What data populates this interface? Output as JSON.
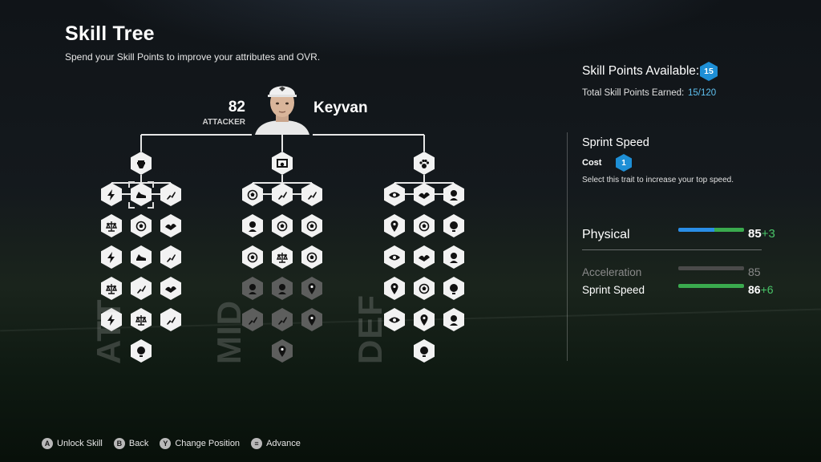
{
  "header": {
    "title": "Skill Tree",
    "subtitle": "Spend your Skill Points to improve your attributes and OVR."
  },
  "player": {
    "ovr": "82",
    "position": "ATTACKER",
    "name": "Keyvan"
  },
  "branches": [
    {
      "label": "ATT",
      "root_icon": "fist-icon"
    },
    {
      "label": "MID",
      "root_icon": "goal-icon"
    },
    {
      "label": "DEF",
      "root_icon": "paw-icon"
    }
  ],
  "skill_points": {
    "available_label": "Skill Points Available:",
    "available": "15",
    "total_label": "Total Skill Points Earned:",
    "total": "15/120"
  },
  "selected_trait": {
    "name": "Sprint Speed",
    "cost_label": "Cost",
    "cost": "1",
    "description": "Select this trait to increase your top speed."
  },
  "stats": {
    "main": {
      "label": "Physical",
      "value": "85",
      "bonus": "+3",
      "base_fraction": 0.55,
      "bonus_fraction": 0.45
    },
    "subs": [
      {
        "label": "Acceleration",
        "value": "85",
        "bonus": "",
        "fraction": 1.0,
        "dim": true
      },
      {
        "label": "Sprint Speed",
        "value": "86",
        "bonus": "+6",
        "fraction": 1.0,
        "dim": false
      }
    ]
  },
  "colors": {
    "accent_blue": "#1e8fd6",
    "bonus_green": "#49c468",
    "node_unlocked": "#f2f2f2",
    "node_locked": "#5d5e5d"
  },
  "footer": [
    {
      "glyph": "A",
      "label": "Unlock Skill"
    },
    {
      "glyph": "B",
      "label": "Back"
    },
    {
      "glyph": "Y",
      "label": "Change Position"
    },
    {
      "glyph": "≡",
      "label": "Advance"
    }
  ]
}
